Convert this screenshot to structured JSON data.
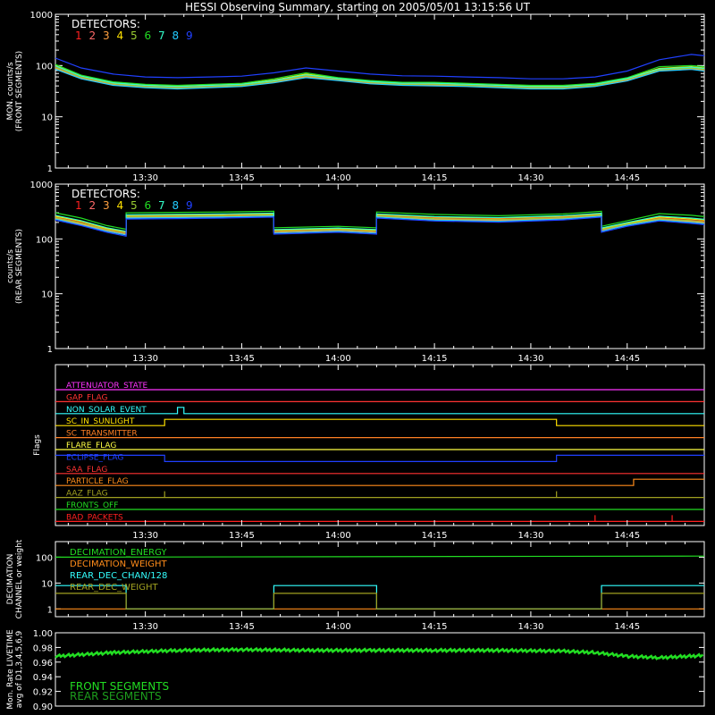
{
  "title": "HESSI Observing Summary, starting on 2005/05/01 13:15:56 UT",
  "colors": {
    "background": "#000000",
    "axes": "#ffffff",
    "detectors": [
      "#ff2020",
      "#ff6a6a",
      "#ffa040",
      "#ffe100",
      "#9acd32",
      "#22dd22",
      "#33ffcc",
      "#22ccff",
      "#2040ff"
    ]
  },
  "chart_data": [
    {
      "type": "line",
      "panel": "front-rates",
      "ylabel": [
        "MON. counts/s",
        "(FRONT SEGMENTS)"
      ],
      "yscale": "log",
      "ylim": [
        1,
        1000
      ],
      "ytick_labels": [
        "1",
        "10",
        "100",
        "1000"
      ],
      "xtick_labels": [
        "13:30",
        "13:45",
        "14:00",
        "14:15",
        "14:30",
        "14:45"
      ],
      "legend_title": "DETECTORS:",
      "legend": [
        "1",
        "2",
        "3",
        "4",
        "5",
        "6",
        "7",
        "8",
        "9"
      ],
      "x": [
        "13:16",
        "13:20",
        "13:25",
        "13:30",
        "13:35",
        "13:40",
        "13:45",
        "13:50",
        "13:55",
        "14:00",
        "14:05",
        "14:10",
        "14:15",
        "14:20",
        "14:25",
        "14:30",
        "14:35",
        "14:40",
        "14:45",
        "14:50",
        "14:55",
        "14:57"
      ],
      "series": [
        {
          "name": "1",
          "values": [
            95,
            60,
            45,
            40,
            38,
            40,
            42,
            50,
            65,
            55,
            48,
            44,
            44,
            42,
            40,
            38,
            38,
            42,
            55,
            85,
            90,
            85
          ]
        },
        {
          "name": "2",
          "values": [
            90,
            58,
            44,
            39,
            37,
            39,
            41,
            48,
            62,
            53,
            46,
            43,
            42,
            41,
            39,
            37,
            37,
            41,
            53,
            82,
            88,
            82
          ]
        },
        {
          "name": "3",
          "values": [
            88,
            56,
            42,
            38,
            36,
            38,
            40,
            47,
            60,
            52,
            45,
            42,
            41,
            40,
            38,
            36,
            36,
            40,
            52,
            80,
            86,
            80
          ]
        },
        {
          "name": "4",
          "values": [
            100,
            63,
            47,
            42,
            40,
            42,
            44,
            52,
            68,
            57,
            50,
            46,
            45,
            44,
            42,
            40,
            40,
            44,
            57,
            88,
            95,
            90
          ]
        },
        {
          "name": "5",
          "values": [
            92,
            59,
            44,
            39,
            37,
            39,
            41,
            49,
            63,
            54,
            47,
            43,
            43,
            41,
            39,
            37,
            37,
            41,
            54,
            83,
            89,
            84
          ]
        },
        {
          "name": "6",
          "values": [
            105,
            65,
            48,
            43,
            41,
            43,
            45,
            55,
            72,
            58,
            51,
            47,
            47,
            45,
            43,
            41,
            41,
            45,
            58,
            95,
            100,
            95
          ]
        },
        {
          "name": "7",
          "values": [
            98,
            62,
            46,
            41,
            39,
            41,
            43,
            51,
            66,
            56,
            49,
            45,
            45,
            43,
            41,
            39,
            39,
            43,
            56,
            86,
            93,
            88
          ]
        },
        {
          "name": "8",
          "values": [
            85,
            55,
            41,
            37,
            35,
            37,
            39,
            46,
            58,
            51,
            44,
            41,
            40,
            39,
            37,
            35,
            35,
            39,
            50,
            78,
            84,
            78
          ]
        },
        {
          "name": "9",
          "values": [
            140,
            90,
            68,
            60,
            58,
            60,
            62,
            72,
            90,
            78,
            68,
            63,
            62,
            60,
            58,
            55,
            55,
            60,
            78,
            130,
            165,
            155
          ]
        }
      ]
    },
    {
      "type": "line",
      "panel": "rear-rates",
      "ylabel": [
        "counts/s",
        "(REAR SEGMENTS)"
      ],
      "yscale": "log",
      "ylim": [
        1,
        1000
      ],
      "ytick_labels": [
        "1",
        "10",
        "100",
        "1000"
      ],
      "xtick_labels": [
        "13:30",
        "13:45",
        "14:00",
        "14:15",
        "14:30",
        "14:45"
      ],
      "legend_title": "DETECTORS:",
      "legend": [
        "1",
        "2",
        "3",
        "4",
        "5",
        "6",
        "7",
        "8",
        "9"
      ],
      "x": [
        "13:16",
        "13:20",
        "13:24",
        "13:27",
        "13:27",
        "13:35",
        "13:42",
        "13:50",
        "13:50",
        "14:00",
        "14:06",
        "14:06",
        "14:15",
        "14:25",
        "14:35",
        "14:41",
        "14:41",
        "14:45",
        "14:50",
        "14:55",
        "14:57"
      ],
      "series": [
        {
          "name": "1",
          "values": [
            250,
            200,
            150,
            130,
            260,
            265,
            270,
            280,
            140,
            150,
            140,
            270,
            240,
            230,
            250,
            280,
            150,
            190,
            240,
            220,
            210
          ]
        },
        {
          "name": "2",
          "values": [
            240,
            190,
            145,
            125,
            250,
            255,
            260,
            270,
            135,
            145,
            135,
            260,
            230,
            220,
            240,
            270,
            145,
            185,
            230,
            210,
            200
          ]
        },
        {
          "name": "3",
          "values": [
            235,
            185,
            140,
            120,
            245,
            250,
            255,
            265,
            130,
            140,
            130,
            255,
            225,
            215,
            235,
            265,
            140,
            180,
            225,
            205,
            195
          ]
        },
        {
          "name": "4",
          "values": [
            260,
            210,
            155,
            135,
            270,
            275,
            280,
            290,
            145,
            155,
            145,
            280,
            250,
            240,
            260,
            290,
            155,
            195,
            250,
            230,
            220
          ]
        },
        {
          "name": "5",
          "values": [
            245,
            195,
            148,
            128,
            255,
            260,
            265,
            275,
            138,
            148,
            138,
            265,
            235,
            225,
            245,
            275,
            148,
            188,
            235,
            215,
            205
          ]
        },
        {
          "name": "6",
          "values": [
            300,
            240,
            175,
            150,
            300,
            305,
            310,
            320,
            160,
            170,
            160,
            310,
            280,
            265,
            285,
            320,
            170,
            215,
            290,
            270,
            255
          ]
        },
        {
          "name": "7",
          "values": [
            270,
            215,
            160,
            138,
            275,
            280,
            285,
            295,
            148,
            158,
            148,
            285,
            255,
            245,
            265,
            295,
            158,
            200,
            260,
            240,
            228
          ]
        },
        {
          "name": "8",
          "values": [
            230,
            180,
            138,
            118,
            240,
            245,
            250,
            260,
            128,
            138,
            128,
            250,
            220,
            210,
            230,
            260,
            138,
            178,
            220,
            200,
            190
          ]
        },
        {
          "name": "9",
          "values": [
            220,
            175,
            132,
            112,
            230,
            235,
            240,
            250,
            122,
            132,
            122,
            240,
            212,
            202,
            222,
            250,
            132,
            170,
            212,
            192,
            182
          ]
        }
      ]
    },
    {
      "type": "line",
      "panel": "flags",
      "ylabel": "Flags",
      "xtick_labels": [
        "13:30",
        "13:45",
        "14:00",
        "14:15",
        "14:30",
        "14:45"
      ],
      "series": [
        {
          "name": "ATTENUATOR_STATE",
          "color": "#ff33ff",
          "changes": []
        },
        {
          "name": "GAP_FLAG",
          "color": "#ff3333",
          "changes": []
        },
        {
          "name": "NON_SOLAR_EVENT",
          "color": "#33ffff",
          "changes": [
            {
              "time": "13:35",
              "state": 1
            },
            {
              "time": "13:36",
              "state": 0
            }
          ]
        },
        {
          "name": "SC_IN_SUNLIGHT",
          "color": "#ffe100",
          "changes": [
            {
              "time": "13:16",
              "state": 0
            },
            {
              "time": "13:33",
              "state": 1
            },
            {
              "time": "14:34",
              "state": 0
            }
          ]
        },
        {
          "name": "SC_TRANSMITTER",
          "color": "#ff7f24",
          "changes": []
        },
        {
          "name": "FLARE_FLAG",
          "color": "#ffff44",
          "changes": []
        },
        {
          "name": "ECLIPSE_FLAG",
          "color": "#2040ff",
          "changes": [
            {
              "time": "13:16",
              "state": 1
            },
            {
              "time": "13:33",
              "state": 0
            },
            {
              "time": "14:34",
              "state": 1
            }
          ]
        },
        {
          "name": "SAA_FLAG",
          "color": "#ff3333",
          "changes": []
        },
        {
          "name": "PARTICLE_FLAG",
          "color": "#ff8c1a",
          "changes": [
            {
              "time": "14:46",
              "state": 1
            }
          ]
        },
        {
          "name": "AAZ_FLAG",
          "color": "#a0a020",
          "changes": [
            {
              "time": "13:33",
              "state": 1
            },
            {
              "time": "13:33",
              "state": 0
            },
            {
              "time": "14:34",
              "state": 1
            },
            {
              "time": "14:34",
              "state": 0
            }
          ]
        },
        {
          "name": "FRONTS_OFF",
          "color": "#22dd22",
          "changes": []
        },
        {
          "name": "BAD_PACKETS",
          "color": "#ff2020",
          "changes": [
            {
              "time": "14:40",
              "state": 1
            },
            {
              "time": "14:40",
              "state": 0
            },
            {
              "time": "14:52",
              "state": 1
            },
            {
              "time": "14:52",
              "state": 0
            }
          ]
        }
      ]
    },
    {
      "type": "line",
      "panel": "decimation",
      "ylabel": [
        "DECIMATION",
        "CHANNEL or weight"
      ],
      "yscale": "log",
      "ylim": [
        0.5,
        400
      ],
      "ytick_labels": [
        "1",
        "10",
        "100"
      ],
      "xtick_labels": [
        "13:30",
        "13:45",
        "14:00",
        "14:15",
        "14:30",
        "14:45"
      ],
      "series": [
        {
          "name": "DECIMATION_ENERGY",
          "color": "#22dd22",
          "x": [
            "13:16",
            "14:56",
            "14:57"
          ],
          "values": [
            100,
            110,
            110
          ]
        },
        {
          "name": "DECIMATION_WEIGHT",
          "color": "#ff8c1a",
          "x": [
            "13:16",
            "14:57"
          ],
          "values": [
            1,
            1
          ]
        },
        {
          "name": "REAR_DEC_CHAN/128",
          "color": "#33ffff",
          "x": [
            "13:16",
            "13:27",
            "13:27",
            "13:50",
            "13:50",
            "14:06",
            "14:06",
            "14:41",
            "14:41",
            "14:57"
          ],
          "values": [
            8,
            8,
            1,
            1,
            8,
            8,
            1,
            1,
            8,
            8
          ]
        },
        {
          "name": "REAR_DEC_WEIGHT",
          "color": "#a0a020",
          "x": [
            "13:16",
            "13:27",
            "13:27",
            "13:50",
            "13:50",
            "14:06",
            "14:06",
            "14:41",
            "14:41",
            "14:57"
          ],
          "values": [
            4,
            4,
            1,
            1,
            4,
            4,
            1,
            1,
            4,
            4
          ]
        }
      ]
    },
    {
      "type": "line",
      "panel": "livetime",
      "ylabel": [
        "Mon. Rate LIVETIME",
        "avg of D1,3,4,5,6,9"
      ],
      "ylim": [
        0.9,
        1.0
      ],
      "ytick_labels": [
        "0.90",
        "0.92",
        "0.94",
        "0.96",
        "0.98",
        "1.00"
      ],
      "series": [
        {
          "name": "FRONT SEGMENTS",
          "color": "#22dd22",
          "x": [
            "13:16",
            "13:25",
            "13:35",
            "13:45",
            "13:55",
            "14:05",
            "14:15",
            "14:25",
            "14:35",
            "14:40",
            "14:45",
            "14:50",
            "14:57"
          ],
          "values": [
            0.968,
            0.973,
            0.976,
            0.977,
            0.976,
            0.976,
            0.976,
            0.976,
            0.975,
            0.973,
            0.968,
            0.966,
            0.969
          ]
        },
        {
          "name": "REAR SEGMENTS",
          "color": "#1d9e1d",
          "x": [],
          "values": []
        }
      ]
    }
  ]
}
